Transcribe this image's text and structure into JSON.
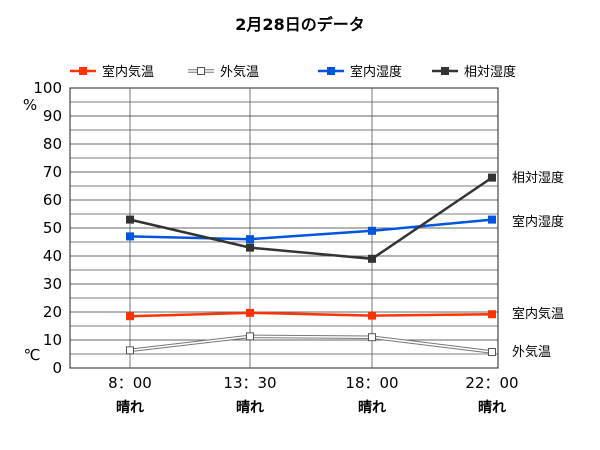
{
  "chart_data": {
    "type": "line",
    "title": "2月28日のデータ",
    "y_unit_top": "%",
    "y_unit_bottom": "℃",
    "ylim": [
      0,
      100
    ],
    "yticks": [
      0,
      10,
      20,
      30,
      40,
      50,
      60,
      70,
      80,
      90,
      100
    ],
    "grid": true,
    "legend_position": "top",
    "categories": [
      "8：00",
      "13：30",
      "18：00",
      "22：00"
    ],
    "weather": [
      "晴れ",
      "晴れ",
      "晴れ",
      "晴れ"
    ],
    "series": [
      {
        "name": "室内気温",
        "values": [
          18.5,
          19.7,
          18.7,
          19.2
        ],
        "color": "#ff3300",
        "marker": "filled-square",
        "end_label": "室内気温"
      },
      {
        "name": "外気温",
        "values": [
          6.3,
          11.3,
          11.0,
          5.7
        ],
        "color": "#909090",
        "marker": "hollow-square",
        "end_label": "外気温"
      },
      {
        "name": "室内湿度",
        "values": [
          47,
          46,
          49,
          53
        ],
        "color": "#0055dd",
        "marker": "filled-square",
        "end_label": "室内湿度"
      },
      {
        "name": "相対湿度",
        "values": [
          53,
          43,
          39,
          68
        ],
        "color": "#333333",
        "marker": "filled-square",
        "end_label": "相対湿度"
      }
    ]
  }
}
